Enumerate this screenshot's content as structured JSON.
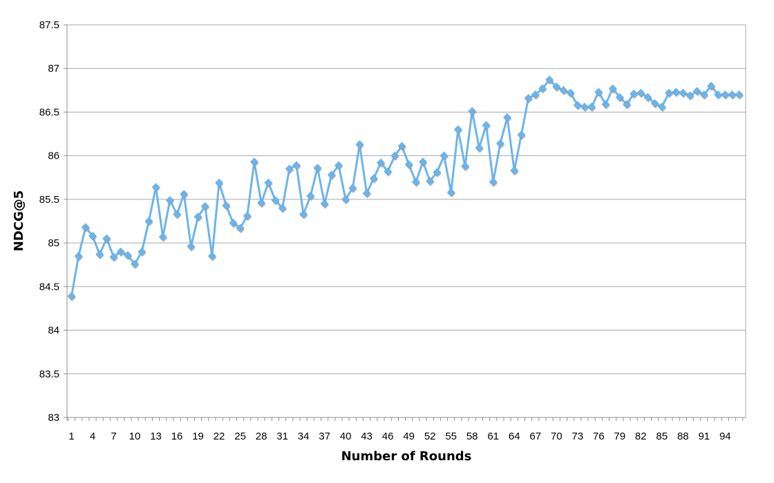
{
  "chart_data": {
    "type": "line",
    "title": "",
    "xlabel": "Number of Rounds",
    "ylabel": "NDCG@5",
    "xlim": [
      1,
      96
    ],
    "ylim": [
      83,
      87.5
    ],
    "y_ticks": [
      "83",
      "83.5",
      "84",
      "84.5",
      "85",
      "85.5",
      "86",
      "86.5",
      "87",
      "87.5"
    ],
    "x_ticks": [
      1,
      4,
      7,
      10,
      13,
      16,
      19,
      22,
      25,
      28,
      31,
      34,
      37,
      40,
      43,
      46,
      49,
      52,
      55,
      58,
      61,
      64,
      67,
      70,
      73,
      76,
      79,
      82,
      85,
      88,
      91,
      94
    ],
    "grid": "horizontal",
    "legend": "none",
    "colors": {
      "line": "#6cb4ea",
      "marker": "#6cb4ea",
      "marker_shadow": "#9a9a9a",
      "grid": "#a8a8a8",
      "axis": "#8c8c8c"
    },
    "series": [
      {
        "marker": "diamond",
        "x": [
          1,
          2,
          3,
          4,
          5,
          6,
          7,
          8,
          9,
          10,
          11,
          12,
          13,
          14,
          15,
          16,
          17,
          18,
          19,
          20,
          21,
          22,
          23,
          24,
          25,
          26,
          27,
          28,
          29,
          30,
          31,
          32,
          33,
          34,
          35,
          36,
          37,
          38,
          39,
          40,
          41,
          42,
          43,
          44,
          45,
          46,
          47,
          48,
          49,
          50,
          51,
          52,
          53,
          54,
          55,
          56,
          57,
          58,
          59,
          60,
          61,
          62,
          63,
          64,
          65,
          66,
          67,
          68,
          69,
          70,
          71,
          72,
          73,
          74,
          75,
          76,
          77,
          78,
          79,
          80,
          81,
          82,
          83,
          84,
          85,
          86,
          87,
          88,
          89,
          90,
          91,
          92,
          93,
          94,
          95,
          96
        ],
        "values": [
          84.39,
          84.85,
          85.18,
          85.08,
          84.87,
          85.05,
          84.84,
          84.9,
          84.86,
          84.76,
          84.9,
          85.25,
          85.64,
          85.07,
          85.49,
          85.33,
          85.56,
          84.96,
          85.3,
          85.42,
          84.85,
          85.69,
          85.43,
          85.23,
          85.17,
          85.31,
          85.93,
          85.46,
          85.69,
          85.49,
          85.4,
          85.85,
          85.89,
          85.33,
          85.54,
          85.86,
          85.45,
          85.78,
          85.89,
          85.5,
          85.63,
          86.13,
          85.57,
          85.74,
          85.92,
          85.82,
          86.0,
          86.11,
          85.9,
          85.7,
          85.93,
          85.71,
          85.81,
          86.0,
          85.58,
          86.3,
          85.88,
          86.51,
          86.09,
          86.35,
          85.7,
          86.14,
          86.44,
          85.83,
          86.24,
          86.66,
          86.7,
          86.77,
          86.87,
          86.79,
          86.75,
          86.72,
          86.58,
          86.56,
          86.56,
          86.73,
          86.59,
          86.77,
          86.67,
          86.59,
          86.71,
          86.72,
          86.67,
          86.6,
          86.56,
          86.72,
          86.73,
          86.72,
          86.69,
          86.74,
          86.7,
          86.8,
          86.7,
          86.7,
          86.7,
          86.7
        ]
      }
    ]
  }
}
